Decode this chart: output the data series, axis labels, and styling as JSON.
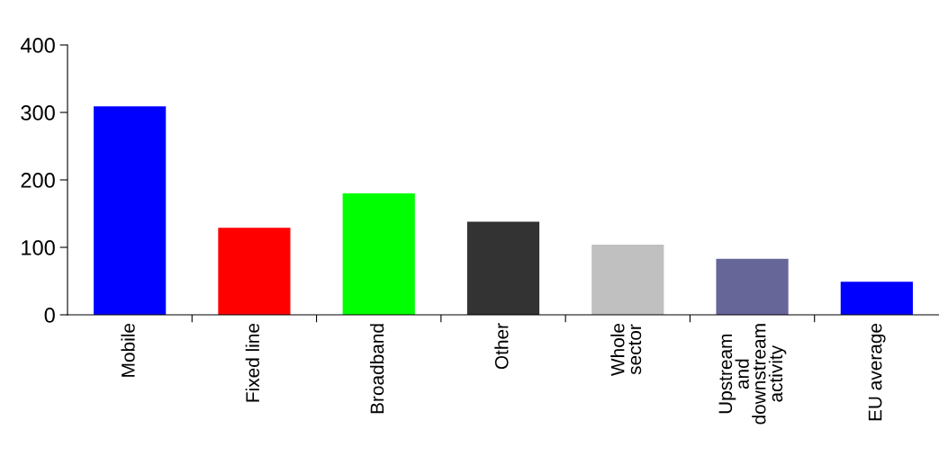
{
  "chart_data": {
    "type": "bar",
    "categories": [
      "Mobile",
      "Fixed line",
      "Broadband",
      "Other",
      "Whole\nsector",
      "Upstream\nand\ndownstream\nactivity",
      "EU average"
    ],
    "values": [
      309,
      129,
      180,
      138,
      104,
      83,
      49
    ],
    "colors": [
      "#0000ff",
      "#ff0000",
      "#00ff00",
      "#333333",
      "#c0c0c0",
      "#666699",
      "#0000ff"
    ],
    "ylim": [
      0,
      400
    ],
    "yticks": [
      0,
      100,
      200,
      300,
      400
    ],
    "grid": false,
    "legend": false
  }
}
